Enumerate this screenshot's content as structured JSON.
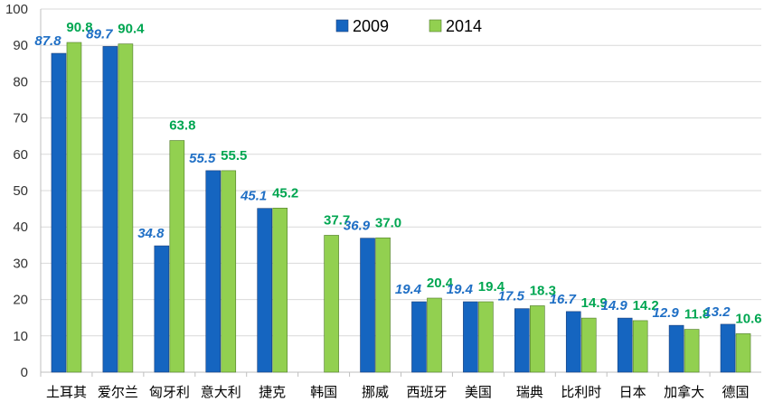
{
  "chart_data": {
    "type": "bar",
    "categories": [
      "土耳其",
      "爱尔兰",
      "匈牙利",
      "意大利",
      "捷克",
      "韩国",
      "挪威",
      "西班牙",
      "美国",
      "瑞典",
      "比利时",
      "日本",
      "加拿大",
      "德国"
    ],
    "series": [
      {
        "name": "2009",
        "values": [
          87.8,
          89.7,
          34.8,
          55.5,
          45.1,
          null,
          36.9,
          19.4,
          19.4,
          17.5,
          16.7,
          14.9,
          12.9,
          13.2
        ],
        "labels": [
          "87.8",
          "89.7",
          "34.8",
          "55.5",
          "45.1",
          "",
          "36.9",
          "19.4",
          "19.4",
          "17.5",
          "16.7",
          "14.9",
          "12.9",
          "13.2"
        ],
        "color": "#1565C0",
        "label_color": "#1F6FC5"
      },
      {
        "name": "2014",
        "values": [
          90.8,
          90.4,
          63.8,
          55.5,
          45.2,
          37.7,
          37.0,
          20.4,
          19.4,
          18.3,
          14.9,
          14.2,
          11.8,
          10.6
        ],
        "labels": [
          "90.8",
          "90.4",
          "63.8",
          "55.5",
          "45.2",
          "37.7",
          "37.0",
          "20.4",
          "19.4",
          "18.3",
          "14.9",
          "14.2",
          "11.8",
          "10.6"
        ],
        "color": "#92D050",
        "label_color": "#00A651"
      }
    ],
    "title": "",
    "xlabel": "",
    "ylabel": "",
    "ylim": [
      0,
      100
    ],
    "yticks": [
      "0",
      "10",
      "20",
      "30",
      "40",
      "50",
      "60",
      "70",
      "80",
      "90",
      "100"
    ],
    "grid": true,
    "legend": "top-center"
  }
}
